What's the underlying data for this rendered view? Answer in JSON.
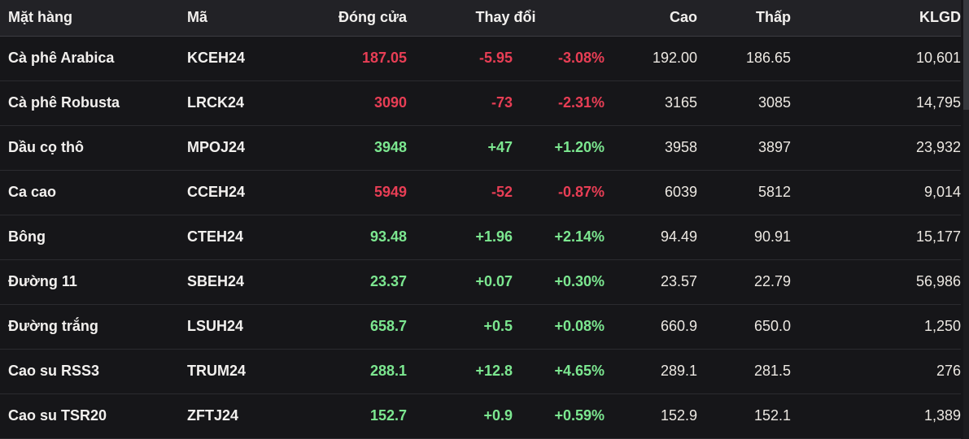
{
  "table": {
    "header": {
      "item": "Mặt hàng",
      "code": "Mã",
      "close": "Đóng cửa",
      "change": "Thay đổi",
      "high": "Cao",
      "low": "Thấp",
      "volume": "KLGD"
    },
    "rows": [
      {
        "item": "Cà phê Arabica",
        "code": "KCEH24",
        "close": "187.05",
        "change": "-5.95",
        "change_pct": "-3.08%",
        "high": "192.00",
        "low": "186.65",
        "volume": "10,601",
        "direction": "down"
      },
      {
        "item": "Cà phê Robusta",
        "code": "LRCK24",
        "close": "3090",
        "change": "-73",
        "change_pct": "-2.31%",
        "high": "3165",
        "low": "3085",
        "volume": "14,795",
        "direction": "down"
      },
      {
        "item": "Dầu cọ thô",
        "code": "MPOJ24",
        "close": "3948",
        "change": "+47",
        "change_pct": "+1.20%",
        "high": "3958",
        "low": "3897",
        "volume": "23,932",
        "direction": "up"
      },
      {
        "item": "Ca cao",
        "code": "CCEH24",
        "close": "5949",
        "change": "-52",
        "change_pct": "-0.87%",
        "high": "6039",
        "low": "5812",
        "volume": "9,014",
        "direction": "down"
      },
      {
        "item": "Bông",
        "code": "CTEH24",
        "close": "93.48",
        "change": "+1.96",
        "change_pct": "+2.14%",
        "high": "94.49",
        "low": "90.91",
        "volume": "15,177",
        "direction": "up"
      },
      {
        "item": "Đường 11",
        "code": "SBEH24",
        "close": "23.37",
        "change": "+0.07",
        "change_pct": "+0.30%",
        "high": "23.57",
        "low": "22.79",
        "volume": "56,986",
        "direction": "up"
      },
      {
        "item": "Đường trắng",
        "code": "LSUH24",
        "close": "658.7",
        "change": "+0.5",
        "change_pct": "+0.08%",
        "high": "660.9",
        "low": "650.0",
        "volume": "1,250",
        "direction": "up"
      },
      {
        "item": "Cao su RSS3",
        "code": "TRUM24",
        "close": "288.1",
        "change": "+12.8",
        "change_pct": "+4.65%",
        "high": "289.1",
        "low": "281.5",
        "volume": "276",
        "direction": "up"
      },
      {
        "item": "Cao su TSR20",
        "code": "ZFTJ24",
        "close": "152.7",
        "change": "+0.9",
        "change_pct": "+0.59%",
        "high": "152.9",
        "low": "152.1",
        "volume": "1,389",
        "direction": "up"
      }
    ]
  },
  "colors": {
    "up": "#7ce790",
    "down": "#e83e55",
    "header_bg": "#222226",
    "row_bg": "#161619",
    "row_border": "#2b2b2f"
  }
}
